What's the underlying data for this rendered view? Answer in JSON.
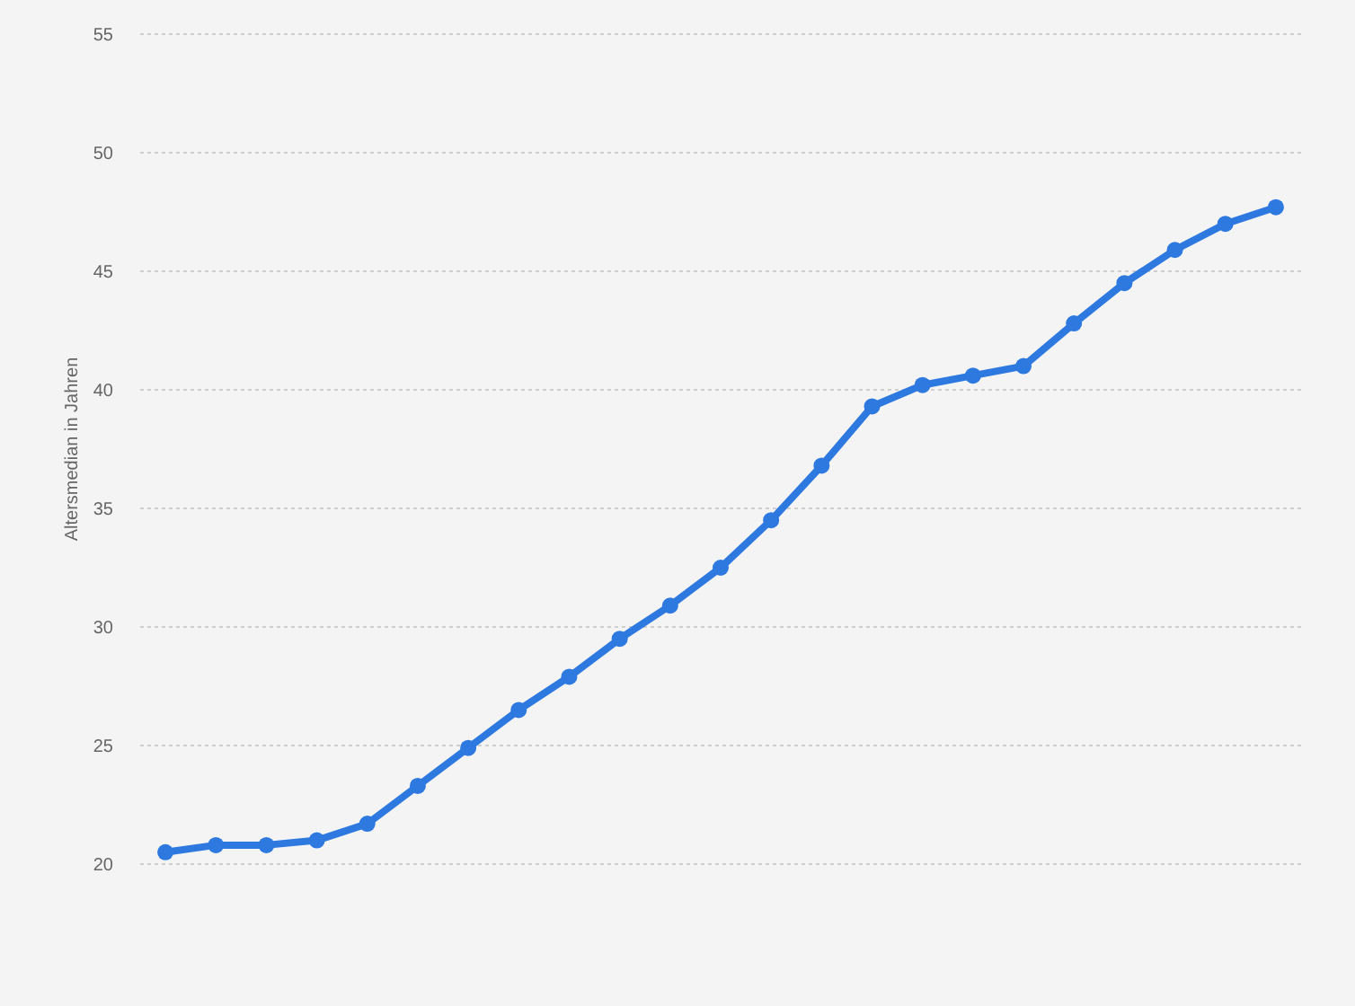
{
  "chart_data": {
    "type": "line",
    "ylabel": "Altersmedian in Jahren",
    "categories": [
      null,
      null,
      null,
      null,
      null,
      null,
      null,
      null,
      null,
      null,
      null,
      null,
      null,
      null,
      null,
      null,
      null,
      null,
      null,
      null,
      null,
      null,
      null
    ],
    "series": [
      {
        "color": "#2e79e0",
        "values": [
          20.5,
          20.8,
          20.8,
          21.0,
          21.7,
          23.3,
          24.9,
          26.5,
          27.9,
          29.5,
          30.9,
          32.5,
          34.5,
          36.8,
          39.3,
          40.2,
          40.6,
          41.0,
          42.8,
          44.5,
          45.9,
          47.0,
          47.7
        ]
      }
    ],
    "ylim": [
      20,
      55
    ],
    "yticks": [
      20,
      25,
      30,
      35,
      40,
      45,
      50,
      55
    ],
    "grid": "y",
    "marker": "circle",
    "line_style": "solid"
  }
}
